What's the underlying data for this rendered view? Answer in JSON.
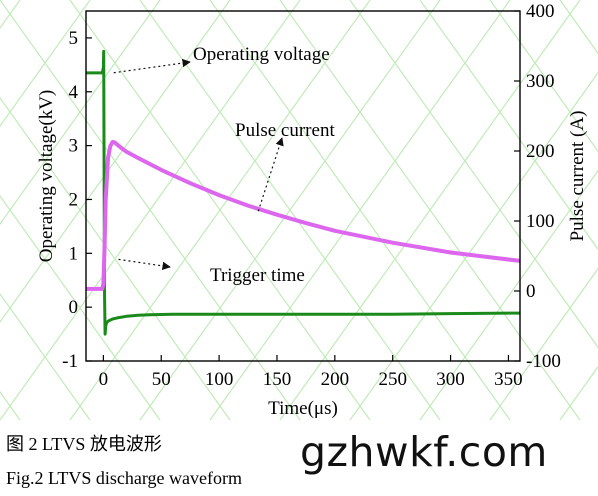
{
  "chart_data": {
    "type": "line",
    "xlabel": "Time(μs)",
    "ylabel_left": "Operating voltage(kV)",
    "ylabel_right": "Pulse current (A)",
    "xlim": [
      -15,
      360
    ],
    "ylim_left": [
      -1,
      5.5
    ],
    "ylim_right": [
      -100,
      400
    ],
    "x_ticks": [
      0,
      50,
      100,
      150,
      200,
      250,
      300,
      350
    ],
    "y_left_ticks": [
      -1,
      0,
      1,
      2,
      3,
      4,
      5
    ],
    "y_right_ticks": [
      -100,
      0,
      100,
      200,
      300,
      400
    ],
    "series": [
      {
        "name": "Operating voltage",
        "axis": "left",
        "color": "#1a8a1a",
        "x": [
          -15,
          -1,
          0,
          0.3,
          0.6,
          1,
          1.5,
          2,
          3,
          5,
          8,
          12,
          20,
          30,
          40,
          60,
          100,
          150,
          200,
          250,
          300,
          360
        ],
        "y": [
          4.35,
          4.35,
          4.45,
          4.75,
          2.5,
          0.3,
          -0.5,
          -0.35,
          -0.28,
          -0.25,
          -0.22,
          -0.2,
          -0.17,
          -0.15,
          -0.14,
          -0.13,
          -0.13,
          -0.13,
          -0.13,
          -0.13,
          -0.12,
          -0.11
        ]
      },
      {
        "name": "Pulse current",
        "axis": "right",
        "color": "#dd66ee",
        "x": [
          -15,
          -1,
          0,
          1,
          2,
          4,
          6,
          8,
          10,
          15,
          20,
          30,
          50,
          75,
          100,
          125,
          150,
          175,
          200,
          250,
          300,
          360
        ],
        "y": [
          3,
          3,
          10,
          60,
          130,
          190,
          207,
          213,
          212,
          205,
          199,
          190,
          173,
          154,
          137,
          122,
          109,
          97,
          86,
          69,
          55,
          43
        ]
      }
    ],
    "annotations": [
      {
        "text": "Operating voltage",
        "points_to_x": 0,
        "points_to_y": 4.35,
        "axis": "left"
      },
      {
        "text": "Pulse current",
        "points_to_x": 130,
        "points_to_y": 120,
        "axis": "right"
      },
      {
        "text": "Trigger time",
        "points_to_x": 0,
        "points_to_y": 1.0,
        "axis": "left"
      }
    ]
  },
  "captions": {
    "cn": "图 2 LTVS 放电波形",
    "en": "Fig.2 LTVS discharge waveform"
  },
  "watermark": "gzhwkf.com"
}
